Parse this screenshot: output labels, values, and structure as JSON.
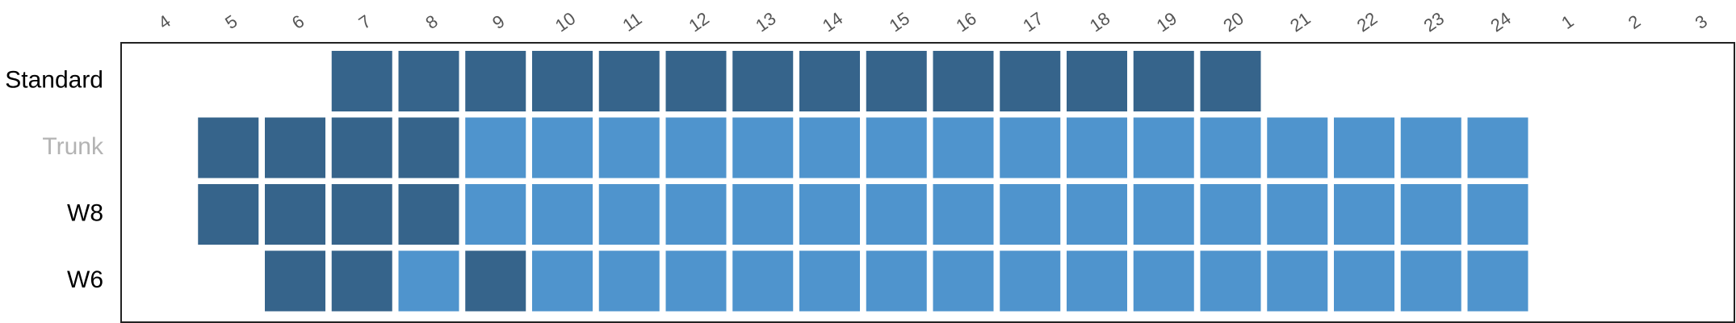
{
  "chart_data": {
    "type": "heatmap",
    "title": "",
    "xlabel": "",
    "ylabel": "",
    "columns": [
      "4",
      "5",
      "6",
      "7",
      "8",
      "9",
      "10",
      "11",
      "12",
      "13",
      "14",
      "15",
      "16",
      "17",
      "18",
      "19",
      "20",
      "21",
      "22",
      "23",
      "24",
      "1",
      "2",
      "3"
    ],
    "rows": [
      {
        "label": "Standard",
        "label_color": "#000000",
        "cells": [
          "",
          "",
          "",
          "dark",
          "dark",
          "dark",
          "dark",
          "dark",
          "dark",
          "dark",
          "dark",
          "dark",
          "dark",
          "dark",
          "dark",
          "dark",
          "dark",
          "",
          "",
          "",
          "",
          "",
          "",
          ""
        ]
      },
      {
        "label": "Trunk",
        "label_color": "#b3b3b3",
        "cells": [
          "",
          "dark",
          "dark",
          "dark",
          "dark",
          "light",
          "light",
          "light",
          "light",
          "light",
          "light",
          "light",
          "light",
          "light",
          "light",
          "light",
          "light",
          "light",
          "light",
          "light",
          "light",
          "",
          "",
          ""
        ]
      },
      {
        "label": "W8",
        "label_color": "#000000",
        "cells": [
          "",
          "dark",
          "dark",
          "dark",
          "dark",
          "light",
          "light",
          "light",
          "light",
          "light",
          "light",
          "light",
          "light",
          "light",
          "light",
          "light",
          "light",
          "light",
          "light",
          "light",
          "light",
          "",
          "",
          ""
        ]
      },
      {
        "label": "W6",
        "label_color": "#000000",
        "cells": [
          "",
          "",
          "dark",
          "dark",
          "light",
          "dark",
          "light",
          "light",
          "light",
          "light",
          "light",
          "light",
          "light",
          "light",
          "light",
          "light",
          "light",
          "light",
          "light",
          "light",
          "light",
          "",
          "",
          ""
        ]
      }
    ],
    "colors": {
      "dark": "#36648b",
      "light": "#4f94cd"
    },
    "legend": "none",
    "grid": false
  }
}
